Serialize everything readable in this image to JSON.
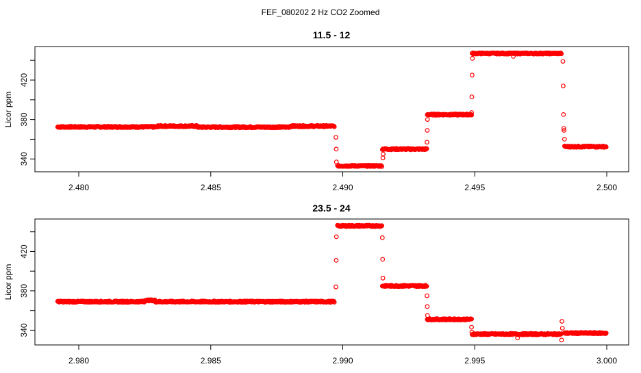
{
  "chart_data": {
    "title": "FEF_080202  2 Hz CO2 Zoomed",
    "panels": [
      {
        "type": "scatter",
        "title": "11.5 - 12",
        "xlabel": "",
        "ylabel": "Licor ppm",
        "xlim": [
          2.47834,
          2.50083
        ],
        "ylim": [
          327,
          454
        ],
        "xticks": [
          2.48,
          2.485,
          2.49,
          2.495,
          2.5
        ],
        "xtick_labels": [
          "2.480",
          "2.485",
          "2.490",
          "2.495",
          "2.500"
        ],
        "yticks": [
          340,
          360,
          380,
          400,
          420,
          440
        ],
        "ytick_labels": [
          "340",
          "",
          "380",
          "",
          "420",
          ""
        ],
        "color": "#ff0000",
        "segments": [
          {
            "x0": 2.4792,
            "x1": 2.483,
            "y": 372.5
          },
          {
            "x0": 2.483,
            "x1": 2.4845,
            "y": 373.3
          },
          {
            "x0": 2.4845,
            "x1": 2.488,
            "y": 372.3
          },
          {
            "x0": 2.488,
            "x1": 2.4897,
            "y": 373.3
          },
          {
            "x0": 2.4898,
            "x1": 2.4915,
            "y": 333
          },
          {
            "x0": 2.4915,
            "x1": 2.4932,
            "y": 350
          },
          {
            "x0": 2.4932,
            "x1": 2.4949,
            "y": 385
          },
          {
            "x0": 2.4949,
            "x1": 2.4983,
            "y": 447
          },
          {
            "x0": 2.4984,
            "x1": 2.5,
            "y": 352.5
          }
        ],
        "points": [
          [
            2.48974,
            362
          ],
          [
            2.48975,
            350
          ],
          [
            2.48976,
            337
          ],
          [
            2.49152,
            341
          ],
          [
            2.49153,
            345
          ],
          [
            2.49319,
            357
          ],
          [
            2.4932,
            369
          ],
          [
            2.49321,
            380
          ],
          [
            2.49488,
            387
          ],
          [
            2.49489,
            403
          ],
          [
            2.4949,
            425
          ],
          [
            2.49491,
            442
          ],
          [
            2.49646,
            444
          ],
          [
            2.49834,
            439
          ],
          [
            2.49835,
            414
          ],
          [
            2.49836,
            385
          ],
          [
            2.49837,
            371
          ],
          [
            2.49838,
            369
          ],
          [
            2.4984,
            360
          ]
        ]
      },
      {
        "type": "scatter",
        "title": "23.5 - 24",
        "xlabel": "",
        "ylabel": "Licor ppm",
        "xlim": [
          2.97834,
          3.00083
        ],
        "ylim": [
          325,
          453
        ],
        "xticks": [
          2.98,
          2.985,
          2.99,
          2.995,
          3.0
        ],
        "xtick_labels": [
          "2.980",
          "2.985",
          "2.990",
          "2.995",
          "3.000"
        ],
        "yticks": [
          340,
          360,
          380,
          400,
          420,
          440
        ],
        "ytick_labels": [
          "340",
          "",
          "380",
          "",
          "420",
          ""
        ],
        "color": "#ff0000",
        "segments": [
          {
            "x0": 2.9792,
            "x1": 2.9825,
            "y": 369
          },
          {
            "x0": 2.9825,
            "x1": 2.9829,
            "y": 370.3
          },
          {
            "x0": 2.9829,
            "x1": 2.9897,
            "y": 369
          },
          {
            "x0": 2.9898,
            "x1": 2.9915,
            "y": 446
          },
          {
            "x0": 2.9915,
            "x1": 2.9932,
            "y": 385
          },
          {
            "x0": 2.9932,
            "x1": 2.9949,
            "y": 351
          },
          {
            "x0": 2.9949,
            "x1": 2.9983,
            "y": 336
          },
          {
            "x0": 2.9984,
            "x1": 3.0,
            "y": 337
          }
        ],
        "points": [
          [
            2.98974,
            384
          ],
          [
            2.98975,
            411
          ],
          [
            2.98976,
            435
          ],
          [
            2.9915,
            434
          ],
          [
            2.99151,
            412
          ],
          [
            2.99152,
            393
          ],
          [
            2.99319,
            375
          ],
          [
            2.9932,
            364
          ],
          [
            2.99321,
            355
          ],
          [
            2.99488,
            343
          ],
          [
            2.99489,
            338
          ],
          [
            2.99662,
            332
          ],
          [
            2.9983,
            349
          ],
          [
            2.99832,
            342
          ],
          [
            2.99829,
            330
          ]
        ]
      }
    ]
  }
}
